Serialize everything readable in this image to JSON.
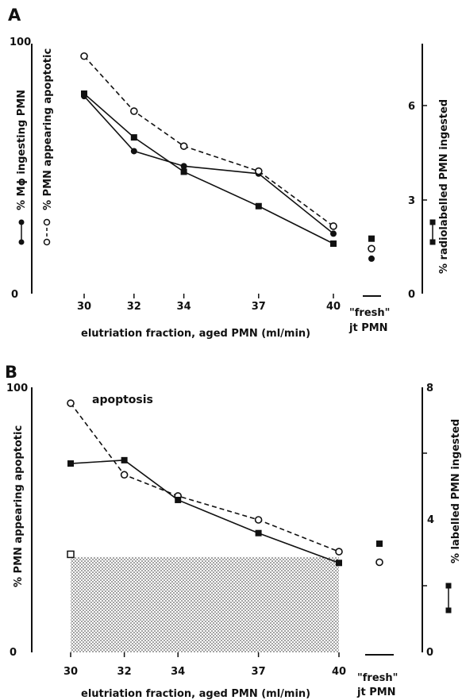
{
  "chart_data": [
    {
      "panel_label": "A",
      "type": "line",
      "x": [
        30,
        32,
        34,
        37,
        40
      ],
      "xtick_labels": [
        "30",
        "32",
        "34",
        "37",
        "40"
      ],
      "xlabel": "elutriation fraction, aged PMN (ml/min)",
      "ylabel_left_1": "% Mϕ ingesting PMN",
      "ylabel_left_2": "% PMN appearing apoptotic",
      "ylabel_right": "% radiolabelled PMN ingested",
      "ylim_left": [
        0,
        100
      ],
      "ylim_right": [
        0,
        8
      ],
      "left_ticks": [
        "100",
        "0"
      ],
      "right_ticks": [
        "6",
        "3",
        "0"
      ],
      "series": [
        {
          "marker": "filled-circle",
          "line": "solid",
          "axis": "left",
          "values": [
            79,
            57,
            51,
            48,
            24
          ]
        },
        {
          "marker": "open-circle",
          "line": "dashed",
          "axis": "left",
          "values": [
            95,
            73,
            59,
            49,
            27
          ]
        },
        {
          "marker": "filled-square",
          "line": "solid",
          "axis": "right",
          "values": [
            6.4,
            5.0,
            3.9,
            2.8,
            1.6
          ]
        }
      ],
      "fresh_label": "\"fresh\"",
      "fresh_label_2": "jt PMN",
      "fresh": {
        "filled-square": 22,
        "open-circle": 18,
        "filled-circle": 14
      },
      "legend_right_axis_marker": "filled-square"
    },
    {
      "panel_label": "B",
      "type": "line",
      "x": [
        30,
        32,
        34,
        37,
        40
      ],
      "xtick_labels": [
        "30",
        "32",
        "34",
        "37",
        "40"
      ],
      "xlabel": "elutriation fraction, aged PMN (ml/min)",
      "ylabel_left": "% PMN appearing apoptotic",
      "ylabel_right": "% labelled PMN ingested",
      "ylim_left": [
        0,
        100
      ],
      "ylim_right": [
        0,
        8
      ],
      "left_ticks": [
        "100",
        "0"
      ],
      "right_ticks": [
        "8",
        "4",
        "0"
      ],
      "annotation": "apoptosis",
      "series": [
        {
          "marker": "open-circle",
          "line": "dashed",
          "axis": "left",
          "values": [
            94,
            67,
            59,
            50,
            38
          ]
        },
        {
          "marker": "filled-square",
          "line": "solid",
          "axis": "right",
          "values": [
            5.7,
            5.8,
            4.6,
            3.6,
            2.7
          ]
        }
      ],
      "baseline_open_square": 37,
      "shaded_band_level": 36,
      "fresh_label": "\"fresh\"",
      "fresh_label_2": "jt PMN",
      "fresh": {
        "filled-square": 41,
        "open-circle": 34
      },
      "legend_right_axis_marker": "filled-square"
    }
  ]
}
